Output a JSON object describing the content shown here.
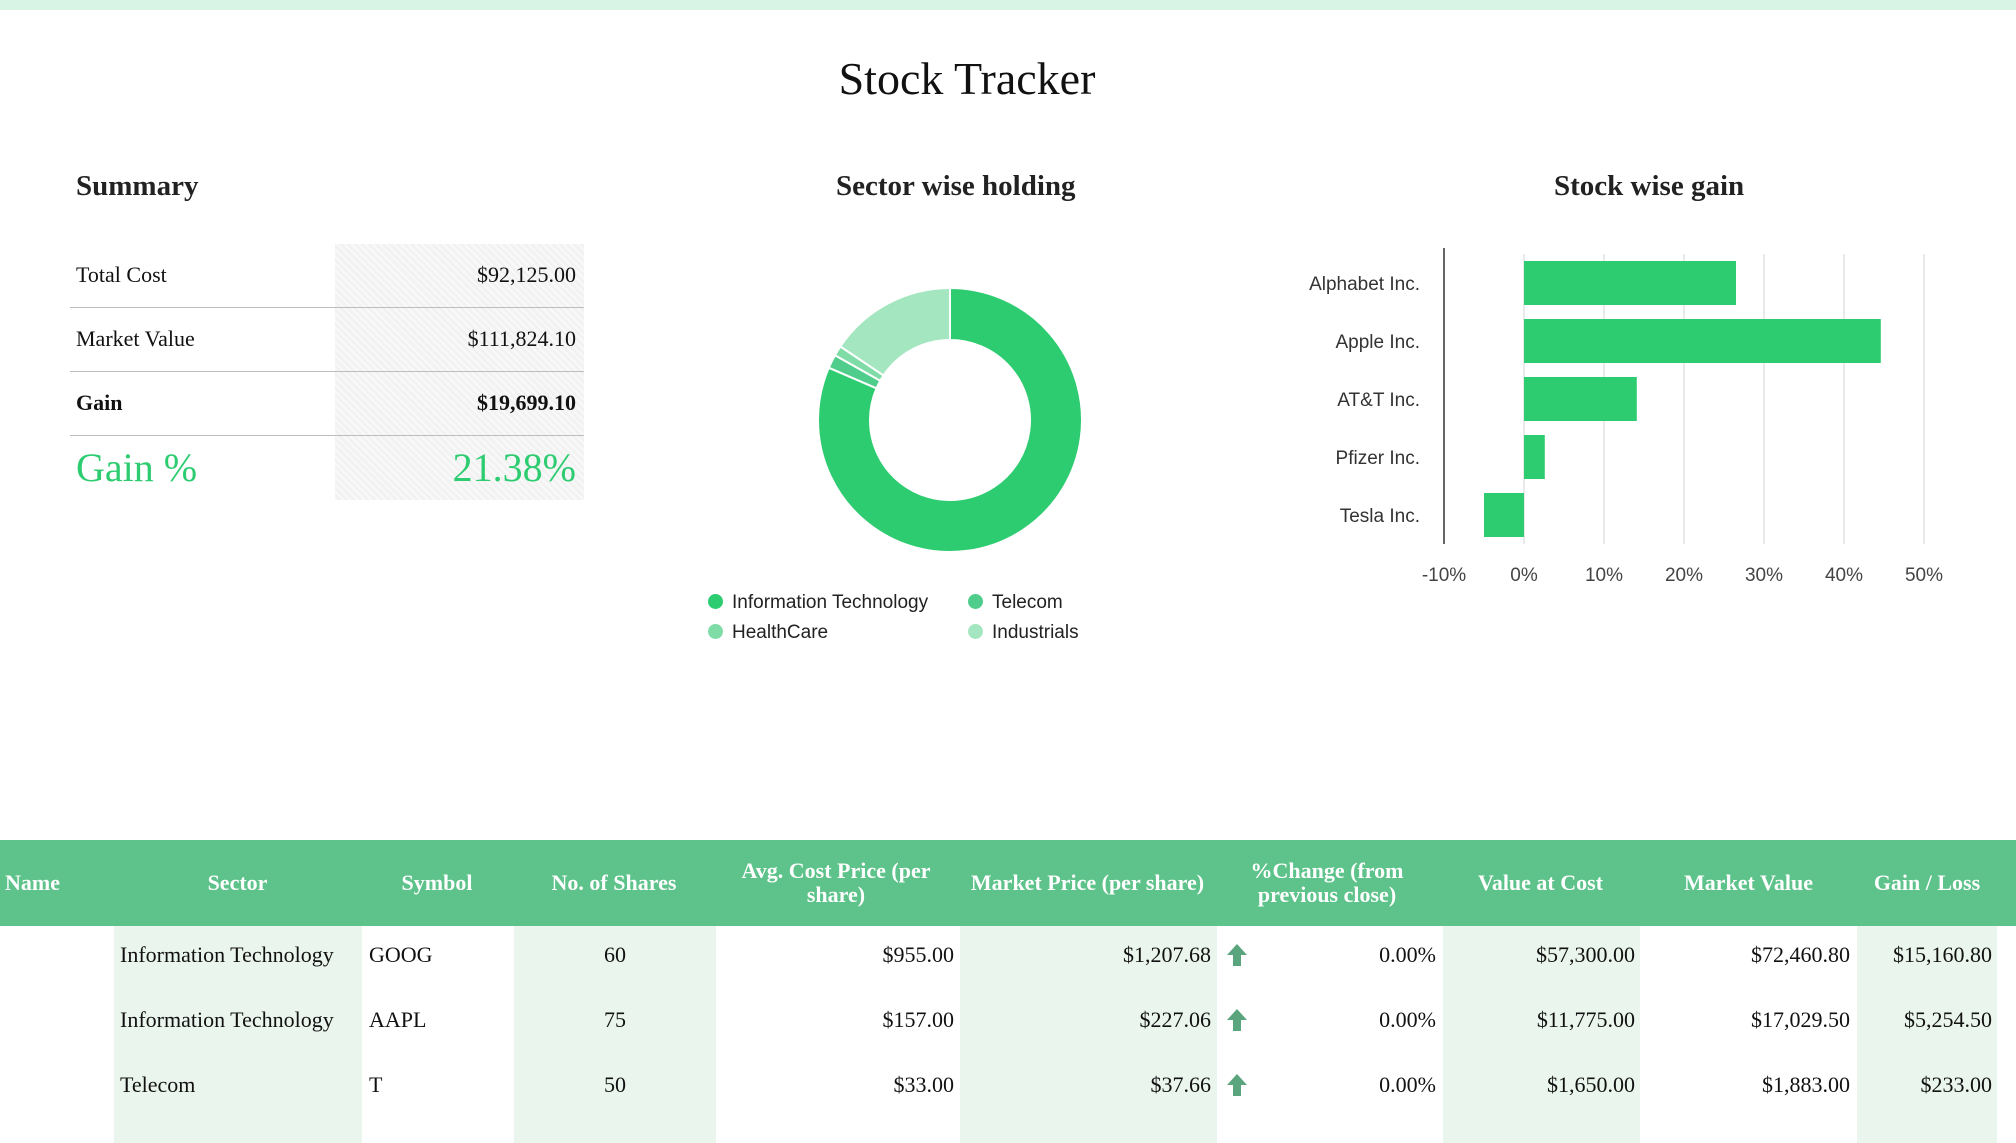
{
  "page": {
    "title": "Stock Tracker"
  },
  "summary": {
    "title": "Summary",
    "rows": [
      {
        "label": "Total Cost",
        "value": "$92,125.00"
      },
      {
        "label": "Market Value",
        "value": "$111,824.10"
      },
      {
        "label": "Gain",
        "value": "$19,699.10"
      },
      {
        "label": "Gain %",
        "value": "21.38%"
      }
    ]
  },
  "colors": {
    "accent": "#2ecc71",
    "header_bg": "#5dc38a",
    "band_bg": "#eaf5ee",
    "arrow": "#5aa57e"
  },
  "chart_data": [
    {
      "type": "pie",
      "title": "Sector wise holding",
      "donut": true,
      "legend_position": "bottom",
      "categories": [
        "Information Technology",
        "Telecom",
        "HealthCare",
        "Industrials"
      ],
      "values": [
        81.48,
        1.68,
        1.24,
        15.6
      ],
      "colors": [
        "#2ecc71",
        "#50cd8a",
        "#7fdca7",
        "#a3e6bf"
      ],
      "slice_order": [
        0,
        1,
        2,
        3
      ]
    },
    {
      "type": "bar",
      "orientation": "horizontal",
      "title": "Stock wise gain",
      "categories": [
        "Alphabet Inc.",
        "Apple Inc.",
        "AT&T Inc.",
        "Pfizer Inc.",
        "Tesla Inc."
      ],
      "values": [
        26.5,
        44.6,
        14.1,
        2.6,
        -5
      ],
      "xlim": [
        -10,
        50
      ],
      "xticks": [
        "-10%",
        "0%",
        "10%",
        "20%",
        "30%",
        "40%",
        "50%"
      ],
      "grid": true,
      "color": "#2ecc71"
    }
  ],
  "table": {
    "headers": [
      "Name",
      "Sector",
      "Symbol",
      "No. of Shares",
      "Avg. Cost Price (per share)",
      "Market Price (per share)",
      "%Change (from previous close)",
      "Value at Cost",
      "Market Value",
      "Gain / Loss"
    ],
    "rows": [
      {
        "name": "",
        "sector": "Information Technology",
        "symbol": "GOOG",
        "shares": "60",
        "avg_cost": "$955.00",
        "market_price": "$1,207.68",
        "trend": "up-arrow-icon",
        "change": "0.00%",
        "value_cost": "$57,300.00",
        "market_value": "$72,460.80",
        "gain": "$15,160.80"
      },
      {
        "name": "",
        "sector": "Information Technology",
        "symbol": "AAPL",
        "shares": "75",
        "avg_cost": "$157.00",
        "market_price": "$227.06",
        "trend": "up-arrow-icon",
        "change": "0.00%",
        "value_cost": "$11,775.00",
        "market_value": "$17,029.50",
        "gain": "$5,254.50"
      },
      {
        "name": "",
        "sector": "Telecom",
        "symbol": "T",
        "shares": "50",
        "avg_cost": "$33.00",
        "market_price": "$37.66",
        "trend": "up-arrow-icon",
        "change": "0.00%",
        "value_cost": "$1,650.00",
        "market_value": "$1,883.00",
        "gain": "$233.00"
      }
    ]
  }
}
